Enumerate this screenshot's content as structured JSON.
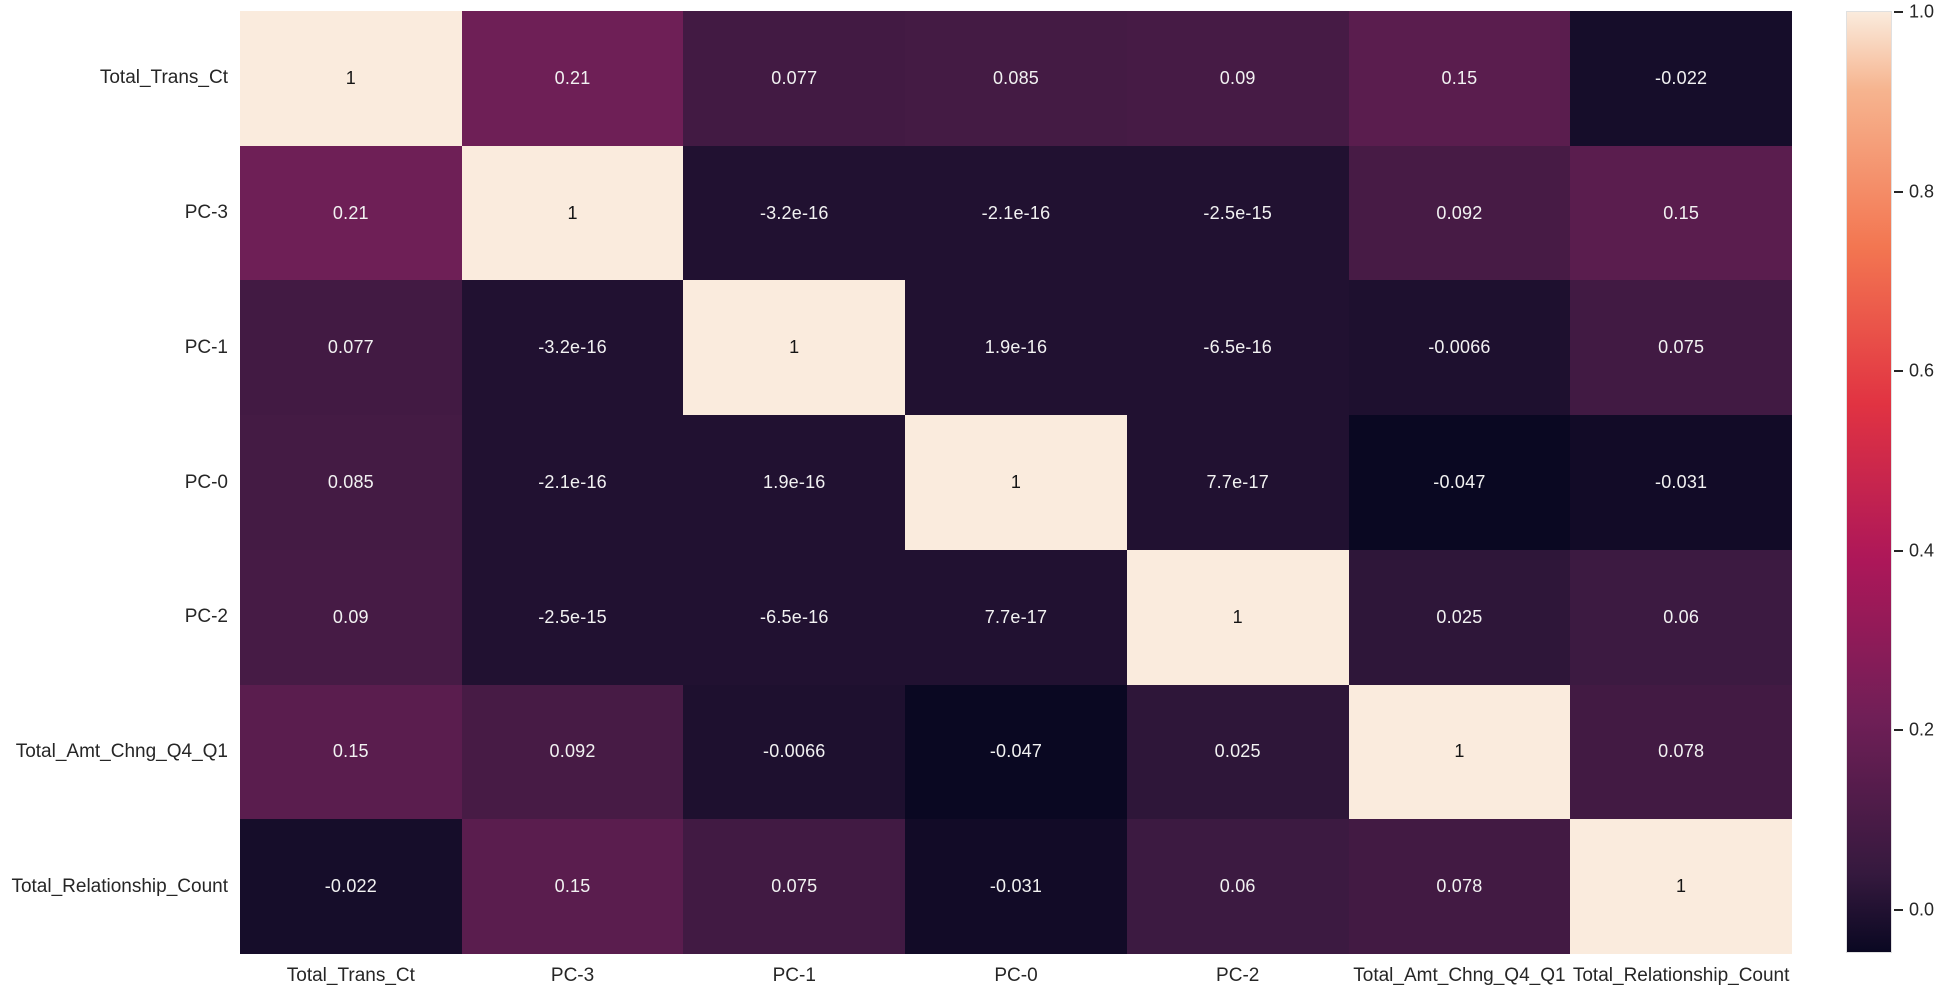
{
  "figure": {
    "background": "#ffffff"
  },
  "chart_data": {
    "type": "heatmap",
    "title": "",
    "xlabel": "",
    "ylabel": "",
    "grid": false,
    "legend_position": "colorbar-right",
    "categories": [
      "Total_Trans_Ct",
      "PC-3",
      "PC-1",
      "PC-0",
      "PC-2",
      "Total_Amt_Chng_Q4_Q1",
      "Total_Relationship_Count"
    ],
    "x_tick_labels": [
      "Total_Trans_Ct",
      "PC-3",
      "PC-1",
      "PC-0",
      "PC-2",
      "Total_Amt_Chng_Q4_Q1",
      "Total_Relationship_Count"
    ],
    "y_tick_labels": [
      "Total_Trans_Ct",
      "PC-3",
      "PC-1",
      "PC-0",
      "PC-2",
      "Total_Amt_Chng_Q4_Q1",
      "Total_Relationship_Count"
    ],
    "matrix_display": [
      [
        "1",
        "0.21",
        "0.077",
        "0.085",
        "0.09",
        "0.15",
        "-0.022"
      ],
      [
        "0.21",
        "1",
        "-3.2e-16",
        "-2.1e-16",
        "-2.5e-15",
        "0.092",
        "0.15"
      ],
      [
        "0.077",
        "-3.2e-16",
        "1",
        "1.9e-16",
        "-6.5e-16",
        "-0.0066",
        "0.075"
      ],
      [
        "0.085",
        "-2.1e-16",
        "1.9e-16",
        "1",
        "7.7e-17",
        "-0.047",
        "-0.031"
      ],
      [
        "0.09",
        "-2.5e-15",
        "-6.5e-16",
        "7.7e-17",
        "1",
        "0.025",
        "0.06"
      ],
      [
        "0.15",
        "0.092",
        "-0.0066",
        "-0.047",
        "0.025",
        "1",
        "0.078"
      ],
      [
        "-0.022",
        "0.15",
        "0.075",
        "-0.031",
        "0.06",
        "0.078",
        "1"
      ]
    ],
    "matrix_values": [
      [
        1,
        0.21,
        0.077,
        0.085,
        0.09,
        0.15,
        -0.022
      ],
      [
        0.21,
        1,
        0,
        0,
        0,
        0.092,
        0.15
      ],
      [
        0.077,
        0,
        1,
        0,
        0,
        -0.0066,
        0.075
      ],
      [
        0.085,
        0,
        0,
        1,
        0,
        -0.047,
        -0.031
      ],
      [
        0.09,
        0,
        0,
        0,
        1,
        0.025,
        0.06
      ],
      [
        0.15,
        0.092,
        -0.0066,
        -0.047,
        0.025,
        1,
        0.078
      ],
      [
        -0.022,
        0.15,
        0.075,
        -0.031,
        0.06,
        0.078,
        1
      ]
    ],
    "vmin": -0.047,
    "vmax": 1.0,
    "colormap": {
      "name": "rocket",
      "anchors": [
        {
          "t": 0.0,
          "color": "#0a0822"
        },
        {
          "t": 0.083,
          "color": "#35193e"
        },
        {
          "t": 0.25,
          "color": "#701f57"
        },
        {
          "t": 0.417,
          "color": "#ad1759"
        },
        {
          "t": 0.583,
          "color": "#e13342"
        },
        {
          "t": 0.75,
          "color": "#f37651"
        },
        {
          "t": 0.917,
          "color": "#f6b48f"
        },
        {
          "t": 1.0,
          "color": "#faebdd"
        }
      ]
    },
    "colorbar": {
      "ticks": [
        {
          "label": "1.0",
          "value": 1.0
        },
        {
          "label": "0.8",
          "value": 0.8
        },
        {
          "label": "0.6",
          "value": 0.6
        },
        {
          "label": "0.4",
          "value": 0.4
        },
        {
          "label": "0.2",
          "value": 0.2
        },
        {
          "label": "0.0",
          "value": 0.0
        }
      ]
    },
    "annotation_text_color_dark": "#151515",
    "annotation_text_color_light": "#f2f2f2",
    "axis_label_color": "#262626"
  }
}
